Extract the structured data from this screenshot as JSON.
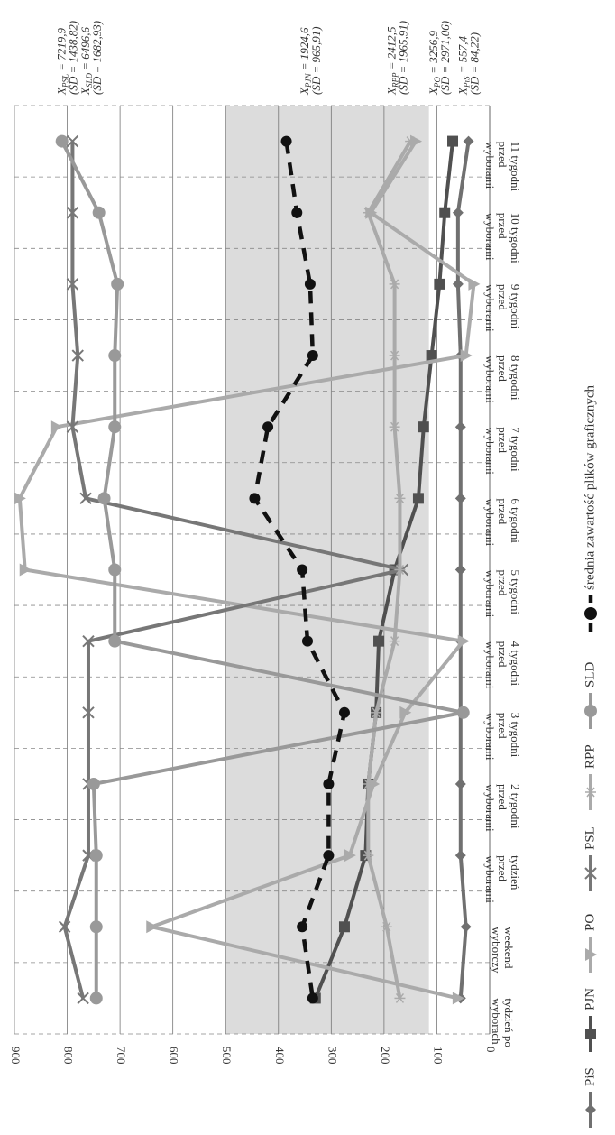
{
  "chart_data": {
    "type": "line",
    "title": "",
    "xlabel": "",
    "ylabel": "",
    "ylim": [
      0,
      900
    ],
    "y_ticks": [
      0,
      100,
      200,
      300,
      400,
      500,
      600,
      700,
      800,
      900
    ],
    "y_tick_labels": [
      "0",
      "100",
      "200",
      "300",
      "400",
      "500",
      "600",
      "700",
      "800",
      "900"
    ],
    "categories": [
      "11 tygodni przed wyborami",
      "10 tygodni przed wyborami",
      "9 tygodni przed wyborami",
      "8 tygodni przed wyborami",
      "7 tygodni przed wyborami",
      "6 tygodni przed wyborami",
      "5 tygodni przed wyborami",
      "4 tygodni przed wyborami",
      "3 tygodni przed wyborami",
      "2 tygodni przed wyborami",
      "tydzień przed wyborami",
      "weekend wyborczy",
      "tydzień po wyborach"
    ],
    "category_lines": [
      [
        "11 tygodni",
        "przed",
        "wyborami"
      ],
      [
        "10 tygodni",
        "przed",
        "wyborami"
      ],
      [
        "9 tygodni",
        "przed",
        "wyborami"
      ],
      [
        "8 tygodni",
        "przed",
        "wyborami"
      ],
      [
        "7 tygodni",
        "przed",
        "wyborami"
      ],
      [
        "6 tygodni",
        "przed",
        "wyborami"
      ],
      [
        "5 tygodni",
        "przed",
        "wyborami"
      ],
      [
        "4 tygodni",
        "przed",
        "wyborami"
      ],
      [
        "3 tygodni",
        "przed",
        "wyborami"
      ],
      [
        "2 tygodni",
        "przed",
        "wyborami"
      ],
      [
        "tydzień",
        "przed",
        "wyborami"
      ],
      [
        "weekend",
        "wyborczy"
      ],
      [
        "tydzień po",
        "wyborach"
      ]
    ],
    "shaded_band": {
      "from": 115,
      "to": 500,
      "color": "#dcdcdc"
    },
    "grid": true,
    "legend_position": "bottom",
    "series": [
      {
        "name": "PiS",
        "marker": "diamond",
        "color": "#707070",
        "dashed": false,
        "values": [
          40,
          60,
          60,
          55,
          55,
          55,
          55,
          55,
          55,
          55,
          55,
          45,
          55
        ]
      },
      {
        "name": "PJN",
        "marker": "square",
        "color": "#505050",
        "dashed": false,
        "values": [
          70,
          85,
          95,
          110,
          125,
          135,
          180,
          210,
          215,
          230,
          235,
          275,
          330
        ]
      },
      {
        "name": "PO",
        "marker": "triangle",
        "color": "#aaaaaa",
        "dashed": false,
        "values": [
          140,
          225,
          30,
          45,
          820,
          890,
          880,
          50,
          160,
          220,
          265,
          640,
          60
        ]
      },
      {
        "name": "PSL",
        "marker": "x",
        "color": "#777777",
        "dashed": false,
        "values": [
          790,
          790,
          790,
          780,
          790,
          765,
          165,
          760,
          760,
          760,
          760,
          805,
          770
        ]
      },
      {
        "name": "RPP",
        "marker": "asterisk",
        "color": "#aaaaaa",
        "dashed": false,
        "values": [
          150,
          230,
          180,
          180,
          180,
          170,
          170,
          180,
          215,
          230,
          230,
          195,
          170
        ]
      },
      {
        "name": "SLD",
        "marker": "circle",
        "color": "#999999",
        "dashed": false,
        "values": [
          810,
          740,
          705,
          710,
          710,
          730,
          710,
          710,
          50,
          750,
          745,
          745,
          745
        ]
      },
      {
        "name": "średnia zawartość plików graficznych",
        "marker": "circle",
        "color": "#111111",
        "dashed": true,
        "values": [
          385,
          365,
          340,
          335,
          420,
          445,
          355,
          345,
          275,
          305,
          305,
          355,
          335
        ]
      }
    ],
    "annotations": [
      {
        "main": "X",
        "sub": "PSL",
        "value": " = 7219,9",
        "sd": "(SD = 1438,82)",
        "y": 790
      },
      {
        "main": "X",
        "sub": "SLD",
        "value": " = 6496,6",
        "sd": "(SD = 1682,93)",
        "y": 745
      },
      {
        "main": "X",
        "sub": "PJN",
        "value": " = 1924,6",
        "sd": "(SD = 965,91)",
        "y": 330
      },
      {
        "main": "X",
        "sub": "RPP",
        "value": " = 2412,5",
        "sd": "(SD = 1965,91)",
        "y": 165
      },
      {
        "main": "X",
        "sub": "PO",
        "value": " = 3256,9",
        "sd": "(SD = 2971,06)",
        "y": 85
      },
      {
        "main": "X",
        "sub": "PiS",
        "value": " = 557,4",
        "sd": "(SD = 84,22)",
        "y": 30
      }
    ]
  }
}
